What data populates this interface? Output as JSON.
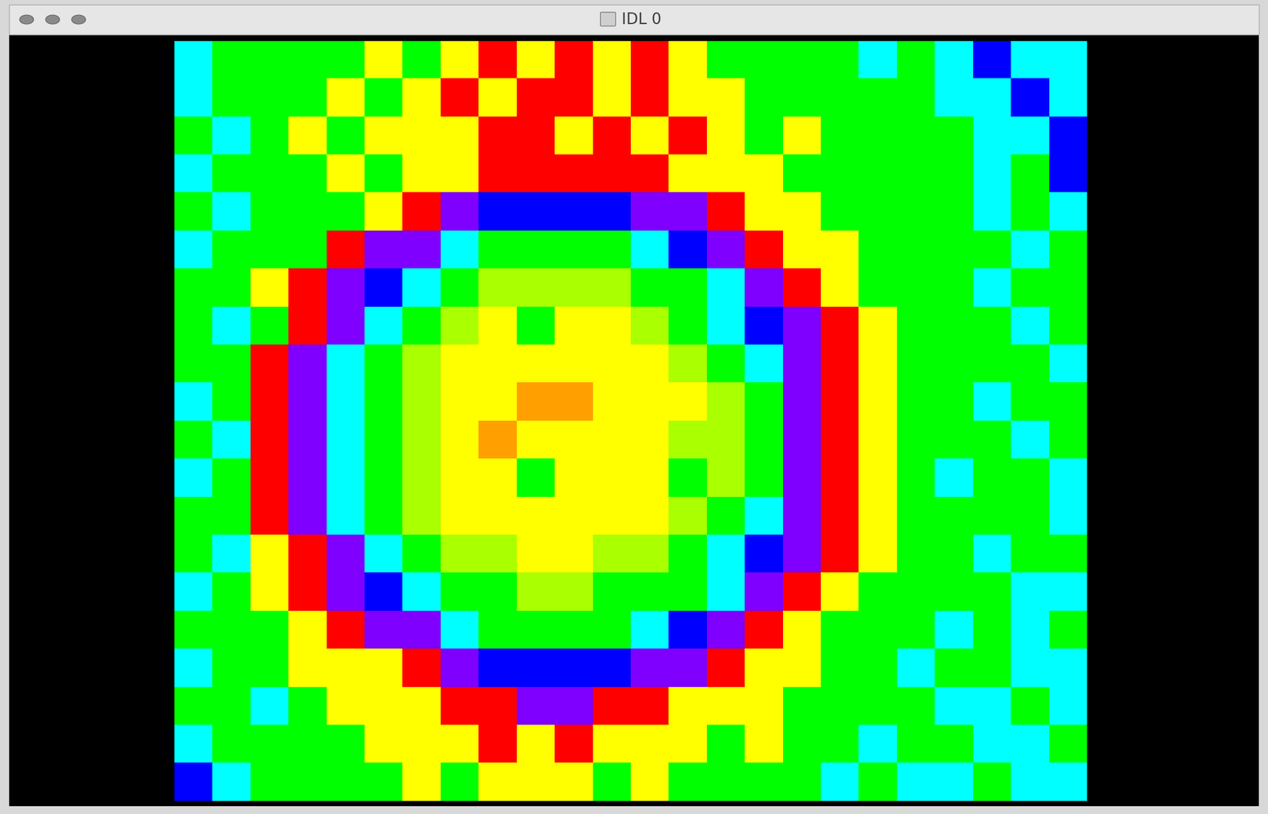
{
  "window": {
    "title": "IDL 0"
  },
  "chart_data": {
    "type": "heatmap",
    "tick_labels": false,
    "colors": [
      "#7f00ff",
      "#0000ff",
      "#00ffff",
      "#00ff00",
      "#aaff00",
      "#ffff00",
      "#ffa000",
      "#ff0000"
    ],
    "cells": [
      [
        2,
        3,
        3,
        3,
        3,
        5,
        3,
        5,
        7,
        5,
        7,
        5,
        7,
        5,
        3,
        3,
        3,
        3,
        2,
        3,
        2,
        1,
        2,
        2
      ],
      [
        2,
        3,
        3,
        3,
        5,
        3,
        5,
        7,
        5,
        7,
        7,
        5,
        7,
        5,
        5,
        3,
        3,
        3,
        3,
        3,
        2,
        2,
        1,
        2
      ],
      [
        3,
        2,
        3,
        5,
        3,
        5,
        5,
        5,
        7,
        7,
        5,
        7,
        5,
        7,
        5,
        3,
        5,
        3,
        3,
        3,
        3,
        2,
        2,
        1
      ],
      [
        2,
        3,
        3,
        3,
        5,
        3,
        5,
        5,
        7,
        7,
        7,
        7,
        7,
        5,
        5,
        5,
        3,
        3,
        3,
        3,
        3,
        2,
        3,
        1
      ],
      [
        3,
        2,
        3,
        3,
        3,
        5,
        7,
        0,
        1,
        1,
        1,
        1,
        0,
        0,
        7,
        5,
        5,
        3,
        3,
        3,
        3,
        2,
        3,
        2
      ],
      [
        2,
        3,
        3,
        3,
        7,
        0,
        0,
        2,
        3,
        3,
        3,
        3,
        2,
        1,
        0,
        7,
        5,
        5,
        3,
        3,
        3,
        3,
        2,
        3
      ],
      [
        3,
        3,
        5,
        7,
        0,
        1,
        2,
        3,
        4,
        4,
        4,
        4,
        3,
        3,
        2,
        0,
        7,
        5,
        3,
        3,
        3,
        2,
        3,
        3
      ],
      [
        3,
        2,
        3,
        7,
        0,
        2,
        3,
        4,
        5,
        3,
        5,
        5,
        4,
        3,
        2,
        1,
        0,
        7,
        5,
        3,
        3,
        3,
        2,
        3
      ],
      [
        3,
        3,
        7,
        0,
        2,
        3,
        4,
        5,
        5,
        5,
        5,
        5,
        5,
        4,
        3,
        2,
        0,
        7,
        5,
        3,
        3,
        3,
        3,
        2
      ],
      [
        2,
        3,
        7,
        0,
        2,
        3,
        4,
        5,
        5,
        6,
        6,
        5,
        5,
        5,
        4,
        3,
        0,
        7,
        5,
        3,
        3,
        2,
        3,
        3
      ],
      [
        3,
        2,
        7,
        0,
        2,
        3,
        4,
        5,
        6,
        5,
        5,
        5,
        5,
        4,
        4,
        3,
        0,
        7,
        5,
        3,
        3,
        3,
        2,
        3
      ],
      [
        2,
        3,
        7,
        0,
        2,
        3,
        4,
        5,
        5,
        3,
        5,
        5,
        5,
        3,
        4,
        3,
        0,
        7,
        5,
        3,
        2,
        3,
        3,
        2
      ],
      [
        3,
        3,
        7,
        0,
        2,
        3,
        4,
        5,
        5,
        5,
        5,
        5,
        5,
        4,
        3,
        2,
        0,
        7,
        5,
        3,
        3,
        3,
        3,
        2
      ],
      [
        3,
        2,
        5,
        7,
        0,
        2,
        3,
        4,
        4,
        5,
        5,
        4,
        4,
        3,
        2,
        1,
        0,
        7,
        5,
        3,
        3,
        2,
        3,
        3
      ],
      [
        2,
        3,
        5,
        7,
        0,
        1,
        2,
        3,
        3,
        4,
        4,
        3,
        3,
        3,
        2,
        0,
        7,
        5,
        3,
        3,
        3,
        3,
        2,
        2
      ],
      [
        3,
        3,
        3,
        5,
        7,
        0,
        0,
        2,
        3,
        3,
        3,
        3,
        2,
        1,
        0,
        7,
        5,
        3,
        3,
        3,
        2,
        3,
        2,
        3
      ],
      [
        2,
        3,
        3,
        5,
        5,
        5,
        7,
        0,
        1,
        1,
        1,
        1,
        0,
        0,
        7,
        5,
        5,
        3,
        3,
        2,
        3,
        3,
        2,
        2
      ],
      [
        3,
        3,
        2,
        3,
        5,
        5,
        5,
        7,
        7,
        0,
        0,
        7,
        7,
        5,
        5,
        5,
        3,
        3,
        3,
        3,
        2,
        2,
        3,
        2
      ],
      [
        2,
        3,
        3,
        3,
        3,
        5,
        5,
        5,
        7,
        5,
        7,
        5,
        5,
        5,
        3,
        5,
        3,
        3,
        2,
        3,
        3,
        2,
        2,
        3
      ],
      [
        1,
        2,
        3,
        3,
        3,
        3,
        5,
        3,
        5,
        5,
        5,
        3,
        5,
        3,
        3,
        3,
        3,
        2,
        3,
        2,
        2,
        3,
        2,
        2
      ]
    ]
  }
}
